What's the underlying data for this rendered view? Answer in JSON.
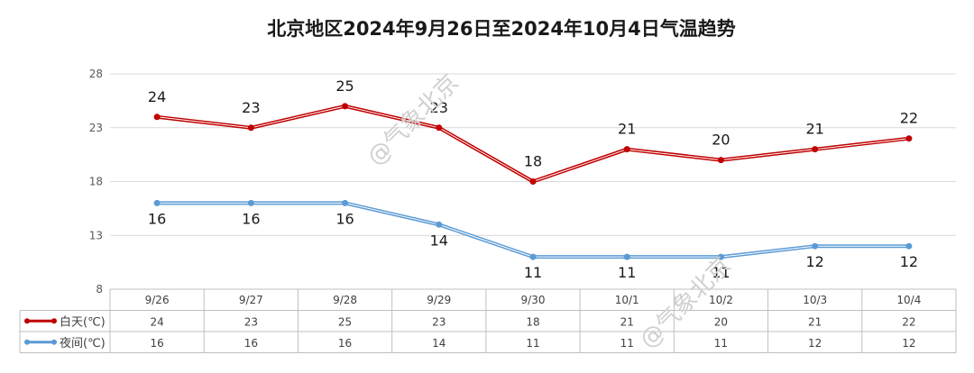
{
  "chart_data": {
    "type": "line",
    "title": "北京地区2024年9月26日至2024年10月4日气温趋势",
    "categories": [
      "9/26",
      "9/27",
      "9/28",
      "9/29",
      "9/30",
      "10/1",
      "10/2",
      "10/3",
      "10/4"
    ],
    "series": [
      {
        "name": "白天(℃)",
        "color": "#c00000",
        "values": [
          24,
          23,
          25,
          23,
          18,
          21,
          20,
          21,
          22
        ]
      },
      {
        "name": "夜间(℃)",
        "color": "#5b9bd5",
        "values": [
          16,
          16,
          16,
          14,
          11,
          11,
          11,
          12,
          12
        ]
      }
    ],
    "ylim": [
      8,
      28
    ],
    "yticks": [
      8,
      13,
      18,
      23,
      28
    ],
    "grid": true,
    "data_table": true
  },
  "watermark": "@气象北京"
}
